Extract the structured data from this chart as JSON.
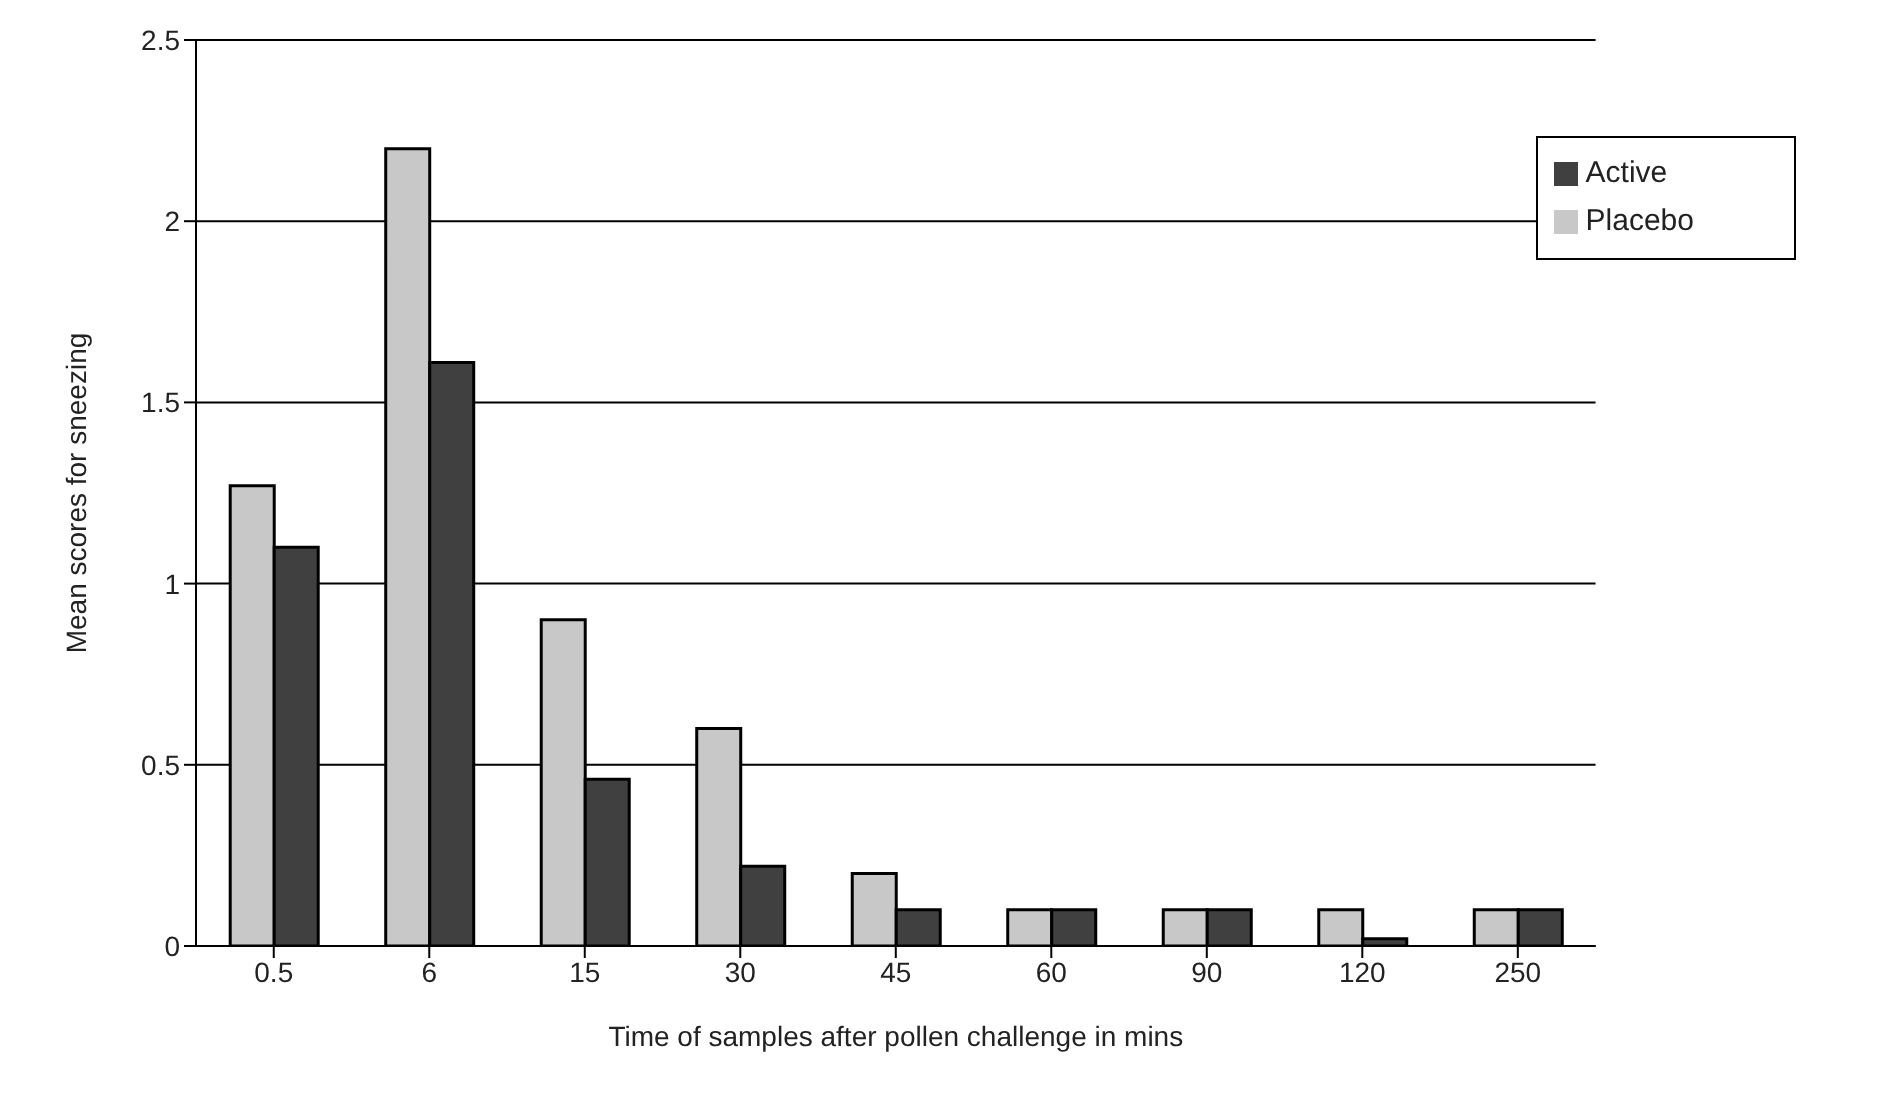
{
  "chart_data": {
    "type": "bar",
    "xlabel": "Time of samples after pollen challenge in mins",
    "ylabel": "Mean scores for sneezing",
    "categories": [
      "0.5",
      "6",
      "15",
      "30",
      "45",
      "60",
      "90",
      "120",
      "250"
    ],
    "series": [
      {
        "name": "Placebo",
        "color": "#c8c8c8",
        "values": [
          1.27,
          2.2,
          0.9,
          0.6,
          0.2,
          0.1,
          0.1,
          0.1,
          0.1
        ]
      },
      {
        "name": "Active",
        "color": "#404040",
        "values": [
          1.1,
          1.61,
          0.46,
          0.22,
          0.1,
          0.1,
          0.1,
          0.02,
          0.1
        ]
      }
    ],
    "ylim": [
      0,
      2.5
    ],
    "yticks": [
      0,
      0.5,
      1,
      1.5,
      2,
      2.5
    ],
    "grid": "y",
    "legend": "top right"
  }
}
